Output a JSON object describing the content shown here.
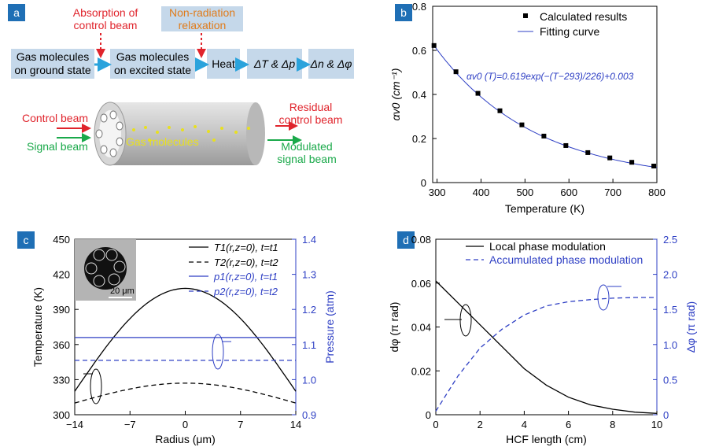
{
  "panel_a": {
    "tag": "a",
    "absorption_label": [
      "Absorption of",
      "control beam"
    ],
    "relaxation_label": [
      "Non-radiation",
      "relaxation"
    ],
    "box_ground": [
      "Gas molecules",
      "on ground state"
    ],
    "box_excited": [
      "Gas molecules",
      "on excited state"
    ],
    "box_heat": "Heat",
    "box_dtdp": "ΔT & Δp",
    "box_dndphi": "Δn & Δφ",
    "control_beam": "Control beam",
    "signal_beam": "Signal beam",
    "gas_molecules": "Gas molecules",
    "residual": [
      "Residual",
      "control beam"
    ],
    "modulated": [
      "Modulated",
      "signal beam"
    ],
    "colors": {
      "red": "#e0242c",
      "green": "#1aa94a",
      "orange": "#e07b1a",
      "box": "#c5d8ea",
      "arrow": "#2aa3dc",
      "dashed_red": "#e0242c"
    }
  },
  "panel_b": {
    "tag": "b",
    "chart_data": {
      "type": "scatter",
      "xlabel": "Temperature (K)",
      "ylabel": "αv0 (cm⁻¹)",
      "xlim": [
        290,
        800
      ],
      "ylim": [
        0,
        0.8
      ],
      "xticks": [
        "300",
        "400",
        "500",
        "600",
        "700",
        "800"
      ],
      "yticks": [
        "0",
        "0.2",
        "0.4",
        "0.6",
        "0.8"
      ],
      "legend": [
        "Calculated results",
        "Fitting curve"
      ],
      "legend_position": "top-right",
      "annotation": "αv0 (T)=0.619exp(−(T−293)/226)+0.003",
      "points_x": [
        293,
        343,
        393,
        443,
        493,
        543,
        593,
        643,
        693,
        743,
        793
      ],
      "points_y": [
        0.622,
        0.503,
        0.405,
        0.326,
        0.262,
        0.211,
        0.168,
        0.136,
        0.112,
        0.092,
        0.075
      ],
      "fit": {
        "a": 0.619,
        "t0": 293,
        "tau": 226,
        "c": 0.003
      },
      "colors": {
        "points": "#000000",
        "fit": "#2e3fc4"
      }
    }
  },
  "panel_c": {
    "tag": "c",
    "chart_data": {
      "type": "line",
      "xlabel": "Radius (μm)",
      "ylabel_left": "Temperature (K)",
      "ylabel_right": "Pressure (atm)",
      "xlim": [
        -14,
        14
      ],
      "ylim_left": [
        300,
        450
      ],
      "ylim_right": [
        0.9,
        1.4
      ],
      "xticks": [
        "−14",
        "−7",
        "0",
        "7",
        "14"
      ],
      "yticks_left": [
        "300",
        "330",
        "360",
        "390",
        "420",
        "450"
      ],
      "yticks_right": [
        "0.9",
        "1.0",
        "1.1",
        "1.2",
        "1.3",
        "1.4"
      ],
      "legend": [
        "T1(r,z=0), t=t1",
        "T2(r,z=0), t=t2",
        "p1(r,z=0), t=t1",
        "p2(r,z=0), t=t2"
      ],
      "inset_scale": "20 μm",
      "series": [
        {
          "name": "T1(r,z=0), t=t1",
          "peak": 408,
          "edge": 320,
          "axis": "left"
        },
        {
          "name": "T2(r,z=0), t=t2",
          "peak": 327,
          "edge": 310,
          "axis": "left"
        },
        {
          "name": "p1(r,z=0), t=t1",
          "value": 1.12,
          "axis": "right"
        },
        {
          "name": "p2(r,z=0), t=t2",
          "value": 1.055,
          "axis": "right"
        }
      ],
      "colors": {
        "temp": "#000000",
        "pressure": "#2e3fc4"
      }
    }
  },
  "panel_d": {
    "tag": "d",
    "chart_data": {
      "type": "line",
      "xlabel": "HCF length (cm)",
      "ylabel_left": "dφ (π rad)",
      "ylabel_right": "Δφ (π rad)",
      "xlim": [
        0,
        10
      ],
      "ylim_left": [
        0,
        0.08
      ],
      "ylim_right": [
        0,
        2.5
      ],
      "xticks": [
        "0",
        "2",
        "4",
        "6",
        "8",
        "10"
      ],
      "yticks_left": [
        "0",
        "0.02",
        "0.04",
        "0.06",
        "0.08"
      ],
      "yticks_right": [
        "0",
        "0.5",
        "1.0",
        "1.5",
        "2.0",
        "2.5"
      ],
      "legend": [
        "Local phase modulation",
        "Accumulated phase modulation"
      ],
      "legend_position": "top",
      "series": [
        {
          "name": "Local phase modulation",
          "x": [
            0,
            1,
            2,
            3,
            4,
            5,
            6,
            7,
            8,
            9,
            10
          ],
          "values": [
            0.061,
            0.051,
            0.041,
            0.031,
            0.021,
            0.0135,
            0.008,
            0.0045,
            0.0025,
            0.0012,
            0.0006
          ],
          "axis": "left"
        },
        {
          "name": "Accumulated phase modulation",
          "x": [
            0,
            1,
            2,
            3,
            4,
            5,
            6,
            7,
            8,
            9,
            10
          ],
          "values": [
            0.05,
            0.55,
            0.95,
            1.22,
            1.42,
            1.55,
            1.61,
            1.64,
            1.66,
            1.67,
            1.67
          ],
          "axis": "right"
        }
      ],
      "colors": {
        "local": "#000000",
        "accumulated": "#2e3fc4"
      }
    }
  }
}
